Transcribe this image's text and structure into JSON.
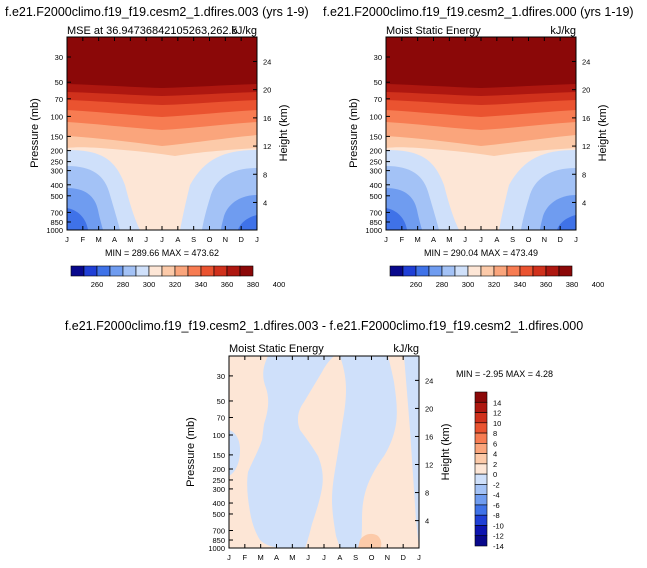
{
  "panels": [
    {
      "title": "f.e21.F2000climo.f19_f19.cesm2_1.dfires.003 (yrs 1-9)",
      "left_label": "MSE at 36.94736842105263,262.5",
      "right_label": "kJ/kg",
      "min_max": "MIN = 289.66  MAX = 473.62"
    },
    {
      "title": "f.e21.F2000climo.f19_f19.cesm2_1.dfires.000 (yrs 1-19)",
      "left_label": "Moist Static Energy",
      "right_label": "kJ/kg",
      "min_max": "MIN = 290.04  MAX = 473.49"
    },
    {
      "title": "f.e21.F2000climo.f19_f19.cesm2_1.dfires.003 - f.e21.F2000climo.f19_f19.cesm2_1.dfires.000",
      "left_label": "Moist Static Energy",
      "right_label": "kJ/kg",
      "min_max": "MIN =  -2.95  MAX =   4.28"
    }
  ],
  "chart_data": [
    {
      "type": "heatmap",
      "title": "f.e21.F2000climo.f19_f19.cesm2_1.dfires.003 (yrs 1-9)",
      "xlabel": "",
      "ylabel": "Pressure (mb)",
      "ylabel_right": "Height (km)",
      "x_ticks": [
        "J",
        "F",
        "M",
        "A",
        "M",
        "J",
        "J",
        "A",
        "S",
        "O",
        "N",
        "D",
        "J"
      ],
      "y_ticks": [
        "30",
        "50",
        "70",
        "100",
        "150",
        "200",
        "250",
        "300",
        "400",
        "500",
        "700",
        "850",
        "1000"
      ],
      "y_ticks_right": [
        "24",
        "20",
        "16",
        "12",
        "8",
        "4"
      ],
      "ylim": [
        1000,
        20
      ],
      "colorbar_levels": [
        "260",
        "280",
        "300",
        "320",
        "340",
        "360",
        "380",
        "400"
      ],
      "colorbar_colors": [
        "#08088c",
        "#1f3fd6",
        "#3f72e8",
        "#6f9cf0",
        "#a3c2f6",
        "#cfe0fa",
        "#fde6d6",
        "#fccaa9",
        "#faa57c",
        "#f77c52",
        "#ea5330",
        "#d0311c",
        "#ae1710",
        "#8b0808"
      ]
    },
    {
      "type": "heatmap",
      "title": "f.e21.F2000climo.f19_f19.cesm2_1.dfires.000 (yrs 1-19)",
      "xlabel": "",
      "ylabel": "Pressure (mb)",
      "ylabel_right": "Height (km)",
      "x_ticks": [
        "J",
        "F",
        "M",
        "A",
        "M",
        "J",
        "J",
        "A",
        "S",
        "O",
        "N",
        "D",
        "J"
      ],
      "y_ticks": [
        "30",
        "50",
        "70",
        "100",
        "150",
        "200",
        "250",
        "300",
        "400",
        "500",
        "700",
        "850",
        "1000"
      ],
      "y_ticks_right": [
        "24",
        "20",
        "16",
        "12",
        "8",
        "4"
      ],
      "ylim": [
        1000,
        20
      ],
      "colorbar_levels": [
        "260",
        "280",
        "300",
        "320",
        "340",
        "360",
        "380",
        "400"
      ],
      "colorbar_colors": [
        "#08088c",
        "#1f3fd6",
        "#3f72e8",
        "#6f9cf0",
        "#a3c2f6",
        "#cfe0fa",
        "#fde6d6",
        "#fccaa9",
        "#faa57c",
        "#f77c52",
        "#ea5330",
        "#d0311c",
        "#ae1710",
        "#8b0808"
      ]
    },
    {
      "type": "heatmap",
      "title": "f.e21.F2000climo.f19_f19.cesm2_1.dfires.003 - f.e21.F2000climo.f19_f19.cesm2_1.dfires.000",
      "xlabel": "",
      "ylabel": "Pressure (mb)",
      "ylabel_right": "Height (km)",
      "x_ticks": [
        "J",
        "F",
        "M",
        "A",
        "M",
        "J",
        "J",
        "A",
        "S",
        "O",
        "N",
        "D",
        "J"
      ],
      "y_ticks": [
        "30",
        "50",
        "70",
        "100",
        "150",
        "200",
        "250",
        "300",
        "400",
        "500",
        "700",
        "850",
        "1000"
      ],
      "y_ticks_right": [
        "24",
        "20",
        "16",
        "12",
        "8",
        "4"
      ],
      "ylim": [
        1000,
        20
      ],
      "colorbar_levels": [
        "14",
        "12",
        "10",
        "8",
        "6",
        "4",
        "2",
        "0",
        "-2",
        "-4",
        "-6",
        "-8",
        "-10",
        "-12",
        "-14"
      ],
      "colorbar_colors": [
        "#8b0808",
        "#ae1710",
        "#d0311c",
        "#ea5330",
        "#f77c52",
        "#faa57c",
        "#fccaa9",
        "#fde6d6",
        "#cfe0fa",
        "#a3c2f6",
        "#6f9cf0",
        "#3f72e8",
        "#1f3fd6",
        "#0d14b0",
        "#08088c"
      ]
    }
  ]
}
